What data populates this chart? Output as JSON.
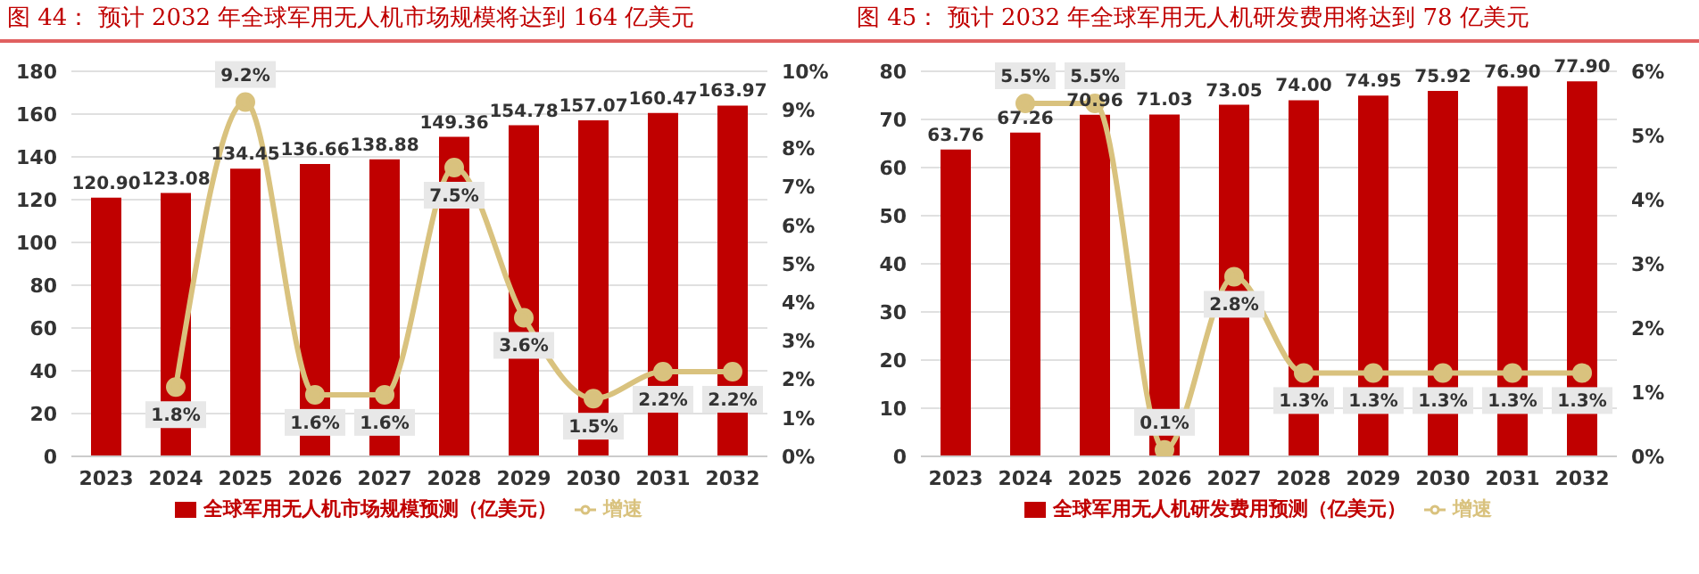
{
  "chart_data": [
    {
      "type": "bar",
      "title": "图 44：  预计 2032 年全球军用无人机市场规模将达到 164 亿美元",
      "categories": [
        "2023",
        "2024",
        "2025",
        "2026",
        "2027",
        "2028",
        "2029",
        "2030",
        "2031",
        "2032"
      ],
      "series": [
        {
          "name": "全球军用无人机市场规模预测（亿美元）",
          "color": "#c00000",
          "values": [
            120.9,
            123.08,
            134.45,
            136.66,
            138.88,
            149.36,
            154.78,
            157.07,
            160.47,
            163.97
          ],
          "value_labels": [
            "120.90",
            "123.08",
            "134.45",
            "136.66",
            "138.88",
            "149.36",
            "154.78",
            "157.07",
            "160.47",
            "163.97"
          ]
        },
        {
          "name": "增速",
          "type": "line",
          "axis": "y2",
          "color": "#d9c27e",
          "values": [
            null,
            1.8,
            9.2,
            1.6,
            1.6,
            7.5,
            3.6,
            1.5,
            2.2,
            2.2
          ],
          "value_labels": [
            null,
            "1.8%",
            "9.2%",
            "1.6%",
            "1.6%",
            "7.5%",
            "3.6%",
            "1.5%",
            "2.2%",
            "2.2%"
          ]
        }
      ],
      "ylim": [
        0,
        180
      ],
      "yticks": [
        0,
        20,
        40,
        60,
        80,
        100,
        120,
        140,
        160,
        180
      ],
      "y2lim": [
        0,
        10
      ],
      "y2ticks": [
        {
          "value": 0,
          "label": "0%"
        },
        {
          "value": 1,
          "label": "1%"
        },
        {
          "value": 2,
          "label": "2%"
        },
        {
          "value": 3,
          "label": "3%"
        },
        {
          "value": 4,
          "label": "4%"
        },
        {
          "value": 5,
          "label": "5%"
        },
        {
          "value": 6,
          "label": "6%"
        },
        {
          "value": 7,
          "label": "7%"
        },
        {
          "value": 8,
          "label": "8%"
        },
        {
          "value": 9,
          "label": "9%"
        },
        {
          "value": 10,
          "label": "10%"
        }
      ],
      "grid": "y",
      "legend": "bottom",
      "marker": "circle",
      "line_style": "solid"
    },
    {
      "type": "bar",
      "title": "图 45：  预计 2032 年全球军用无人机研发费用将达到 78 亿美元",
      "categories": [
        "2023",
        "2024",
        "2025",
        "2026",
        "2027",
        "2028",
        "2029",
        "2030",
        "2031",
        "2032"
      ],
      "series": [
        {
          "name": "全球军用无人机研发费用预测（亿美元）",
          "color": "#c00000",
          "values": [
            63.76,
            67.26,
            70.96,
            71.03,
            73.05,
            74.0,
            74.95,
            75.92,
            76.9,
            77.9
          ],
          "value_labels": [
            "63.76",
            "67.26",
            "70.96",
            "71.03",
            "73.05",
            "74.00",
            "74.95",
            "75.92",
            "76.90",
            "77.90"
          ]
        },
        {
          "name": "增速",
          "type": "line",
          "axis": "y2",
          "color": "#d9c27e",
          "values": [
            null,
            5.5,
            5.5,
            0.1,
            2.8,
            1.3,
            1.3,
            1.3,
            1.3,
            1.3
          ],
          "value_labels": [
            null,
            "5.5%",
            "5.5%",
            "0.1%",
            "2.8%",
            "1.3%",
            "1.3%",
            "1.3%",
            "1.3%",
            "1.3%"
          ]
        }
      ],
      "ylim": [
        0,
        80
      ],
      "yticks": [
        0,
        10,
        20,
        30,
        40,
        50,
        60,
        70,
        80
      ],
      "y2lim": [
        0,
        6
      ],
      "y2ticks": [
        {
          "value": 0,
          "label": "0%"
        },
        {
          "value": 1,
          "label": "1%"
        },
        {
          "value": 2,
          "label": "2%"
        },
        {
          "value": 3,
          "label": "3%"
        },
        {
          "value": 4,
          "label": "4%"
        },
        {
          "value": 5,
          "label": "5%"
        },
        {
          "value": 6,
          "label": "6%"
        }
      ],
      "grid": "y",
      "legend": "bottom",
      "marker": "circle",
      "line_style": "solid"
    }
  ]
}
